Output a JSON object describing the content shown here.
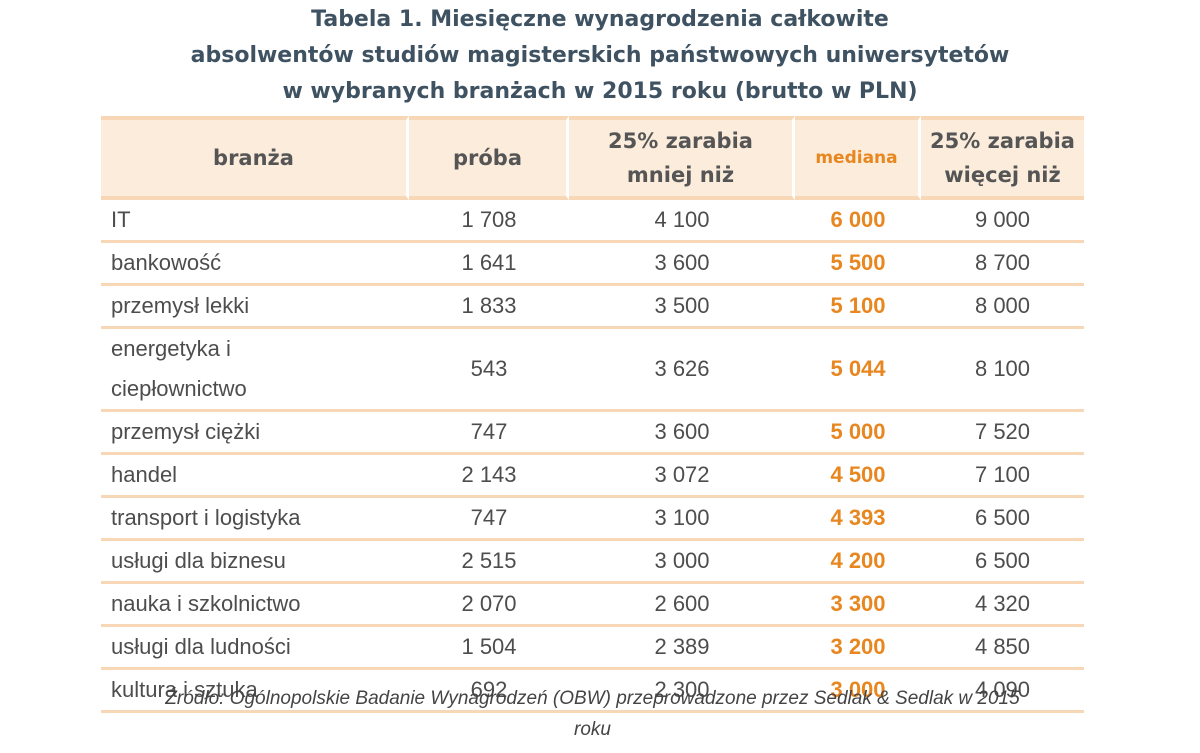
{
  "title": {
    "line1": "Tabela 1. Miesięczne wynagrodzenia całkowite",
    "line2": "absolwentów studiów magisterskich państwowych uniwersytetów",
    "line3": "w wybranych branżach w 2015 roku (brutto w PLN)"
  },
  "columns": {
    "branza": "branża",
    "proba": "próba",
    "q1_line1": "25% zarabia",
    "q1_line2": "mniej niż",
    "mediana": "mediana",
    "q3_line1": "25% zarabia",
    "q3_line2": "więcej niż"
  },
  "rows": [
    {
      "branza_line1": "IT",
      "branza_line2": "",
      "proba": "1 708",
      "q1": "4 100",
      "mediana": "6 000",
      "q3": "9 000"
    },
    {
      "branza_line1": "bankowość",
      "branza_line2": "",
      "proba": "1 641",
      "q1": "3 600",
      "mediana": "5 500",
      "q3": "8 700"
    },
    {
      "branza_line1": "przemysł lekki",
      "branza_line2": "",
      "proba": "1 833",
      "q1": "3 500",
      "mediana": "5 100",
      "q3": "8 000"
    },
    {
      "branza_line1": "energetyka i",
      "branza_line2": "ciepłownictwo",
      "proba": "543",
      "q1": "3 626",
      "mediana": "5 044",
      "q3": "8 100"
    },
    {
      "branza_line1": "przemysł ciężki",
      "branza_line2": "",
      "proba": "747",
      "q1": "3 600",
      "mediana": "5 000",
      "q3": "7 520"
    },
    {
      "branza_line1": "handel",
      "branza_line2": "",
      "proba": "2 143",
      "q1": "3 072",
      "mediana": "4 500",
      "q3": "7 100"
    },
    {
      "branza_line1": "transport i logistyka",
      "branza_line2": "",
      "proba": "747",
      "q1": "3 100",
      "mediana": "4 393",
      "q3": "6 500"
    },
    {
      "branza_line1": "usługi dla biznesu",
      "branza_line2": "",
      "proba": "2 515",
      "q1": "3 000",
      "mediana": "4 200",
      "q3": "6 500"
    },
    {
      "branza_line1": "nauka i szkolnictwo",
      "branza_line2": "",
      "proba": "2 070",
      "q1": "2 600",
      "mediana": "3 300",
      "q3": "4 320"
    },
    {
      "branza_line1": "usługi dla ludności",
      "branza_line2": "",
      "proba": "1 504",
      "q1": "2 389",
      "mediana": "3 200",
      "q3": "4 850"
    },
    {
      "branza_line1": "kultura i sztuka",
      "branza_line2": "",
      "proba": "692",
      "q1": "2 300",
      "mediana": "3 000",
      "q3": "4 090"
    }
  ],
  "source": {
    "line1": "Źródło: Ogólnopolskie Badanie Wynagrodzeń (OBW) przeprowadzone przez Sedlak & Sedlak w 2015",
    "line2": "roku"
  },
  "colors": {
    "accent": "#e8861f",
    "header_bg": "#fcecdc",
    "row_border": "#f8d7b7",
    "title": "#3f5262"
  }
}
